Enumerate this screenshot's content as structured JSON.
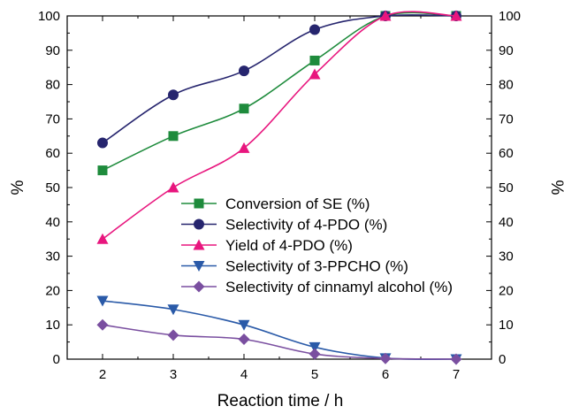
{
  "chart_data": {
    "type": "line",
    "title": "",
    "xlabel": "Reaction time / h",
    "ylabel": "%",
    "ylabel_right": "%",
    "xlim": [
      1.5,
      7.5
    ],
    "ylim": [
      0,
      100
    ],
    "xticks": [
      2,
      3,
      4,
      5,
      6,
      7
    ],
    "yticks": [
      0,
      10,
      20,
      30,
      40,
      50,
      60,
      70,
      80,
      90,
      100
    ],
    "grid": false,
    "legend_position": "center",
    "x": [
      2,
      3,
      4,
      5,
      6,
      7
    ],
    "series": [
      {
        "name": "Conversion of SE (%)",
        "color": "#1e8b3c",
        "marker": "square",
        "values": [
          55,
          65,
          73,
          87,
          100,
          100
        ]
      },
      {
        "name": "Selectivity of 4-PDO (%)",
        "color": "#26256e",
        "marker": "circle",
        "values": [
          63,
          77,
          84,
          96,
          100,
          100
        ]
      },
      {
        "name": "Yield of 4-PDO (%)",
        "color": "#e8167e",
        "marker": "triangle-up",
        "values": [
          35,
          50,
          61.5,
          83,
          100,
          100
        ]
      },
      {
        "name": "Selectivity of 3-PPCHO (%)",
        "color": "#2a5aa8",
        "marker": "triangle-down",
        "values": [
          17,
          14.5,
          10,
          3.5,
          0.3,
          0
        ]
      },
      {
        "name": "Selectivity of cinnamyl alcohol (%)",
        "color": "#7a4fa0",
        "marker": "diamond",
        "values": [
          10,
          7,
          5.8,
          1.5,
          0.2,
          0
        ]
      }
    ]
  }
}
